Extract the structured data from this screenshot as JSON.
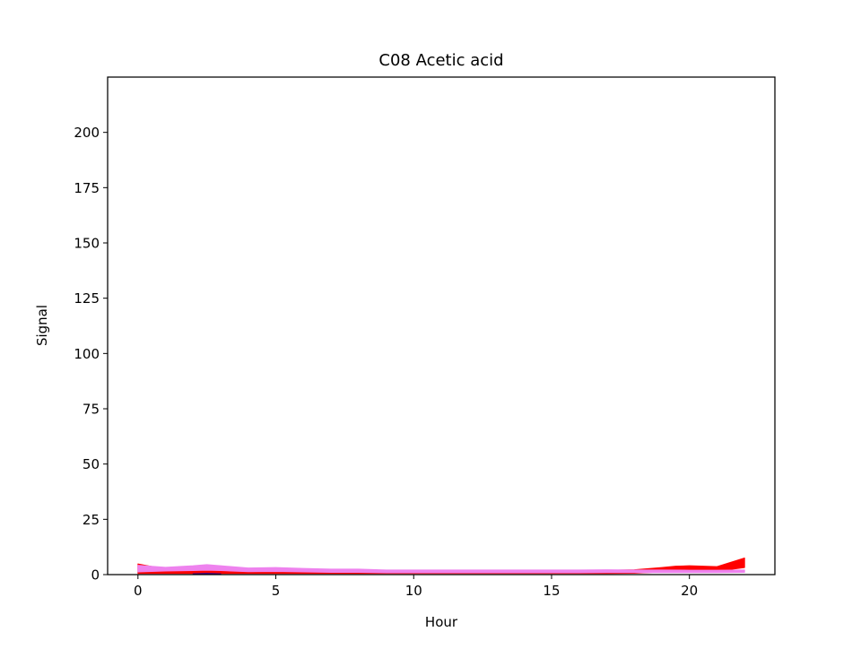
{
  "chart_data": {
    "type": "area",
    "title": "C08 Acetic acid",
    "xlabel": "Hour",
    "ylabel": "Signal",
    "xlim": [
      -1.1,
      23.1
    ],
    "ylim": [
      0,
      225
    ],
    "xticks": [
      0,
      5,
      10,
      15,
      20
    ],
    "yticks": [
      0,
      25,
      50,
      75,
      100,
      125,
      150,
      175,
      200
    ],
    "grid": false,
    "legend": "none",
    "series": [
      {
        "color": "#ff0000",
        "x": [
          0,
          1,
          2,
          2.5,
          3,
          4,
          5,
          6,
          7,
          8,
          9,
          10,
          11,
          12,
          13,
          14,
          15,
          16,
          17,
          18,
          19,
          19.5,
          20,
          21,
          22
        ],
        "lower": [
          0.5,
          0.5,
          0.5,
          0.5,
          0.5,
          0.5,
          0.5,
          0.5,
          0.5,
          0.5,
          0.5,
          0.5,
          0.5,
          0.5,
          0.5,
          0.5,
          0.5,
          0.5,
          0.5,
          0.6,
          1.2,
          1.5,
          1.5,
          1.5,
          3.2
        ],
        "upper": [
          4.8,
          2.5,
          3.4,
          3.8,
          3.2,
          2.2,
          2.4,
          2.2,
          1.8,
          2.0,
          1.7,
          1.7,
          1.7,
          1.7,
          1.7,
          1.7,
          1.7,
          1.7,
          1.9,
          2.2,
          3.2,
          3.8,
          4.0,
          3.6,
          7.5
        ]
      },
      {
        "color": "#ee82ee",
        "x": [
          0,
          1,
          2,
          2.5,
          3,
          4,
          5,
          6,
          7,
          8,
          9,
          10,
          11,
          12,
          13,
          14,
          15,
          16,
          17,
          18,
          19,
          20,
          21,
          22
        ],
        "lower": [
          1.2,
          1.6,
          1.8,
          2.0,
          1.8,
          1.3,
          1.4,
          1.2,
          1.0,
          1.0,
          0.8,
          0.8,
          0.8,
          0.8,
          0.8,
          0.8,
          0.8,
          0.8,
          0.9,
          0.9,
          0.9,
          0.9,
          0.9,
          1.0
        ],
        "upper": [
          4.2,
          3.3,
          4.0,
          4.5,
          4.0,
          3.0,
          3.2,
          2.8,
          2.5,
          2.5,
          2.1,
          2.1,
          2.1,
          2.1,
          2.1,
          2.1,
          2.1,
          2.1,
          2.2,
          2.1,
          2.1,
          2.0,
          2.0,
          2.1
        ]
      },
      {
        "color": "#4b0082",
        "x": [
          2,
          2.5,
          3
        ],
        "lower": [
          0.0,
          0.0,
          0.0
        ],
        "upper": [
          0.4,
          0.6,
          0.4
        ]
      }
    ]
  }
}
